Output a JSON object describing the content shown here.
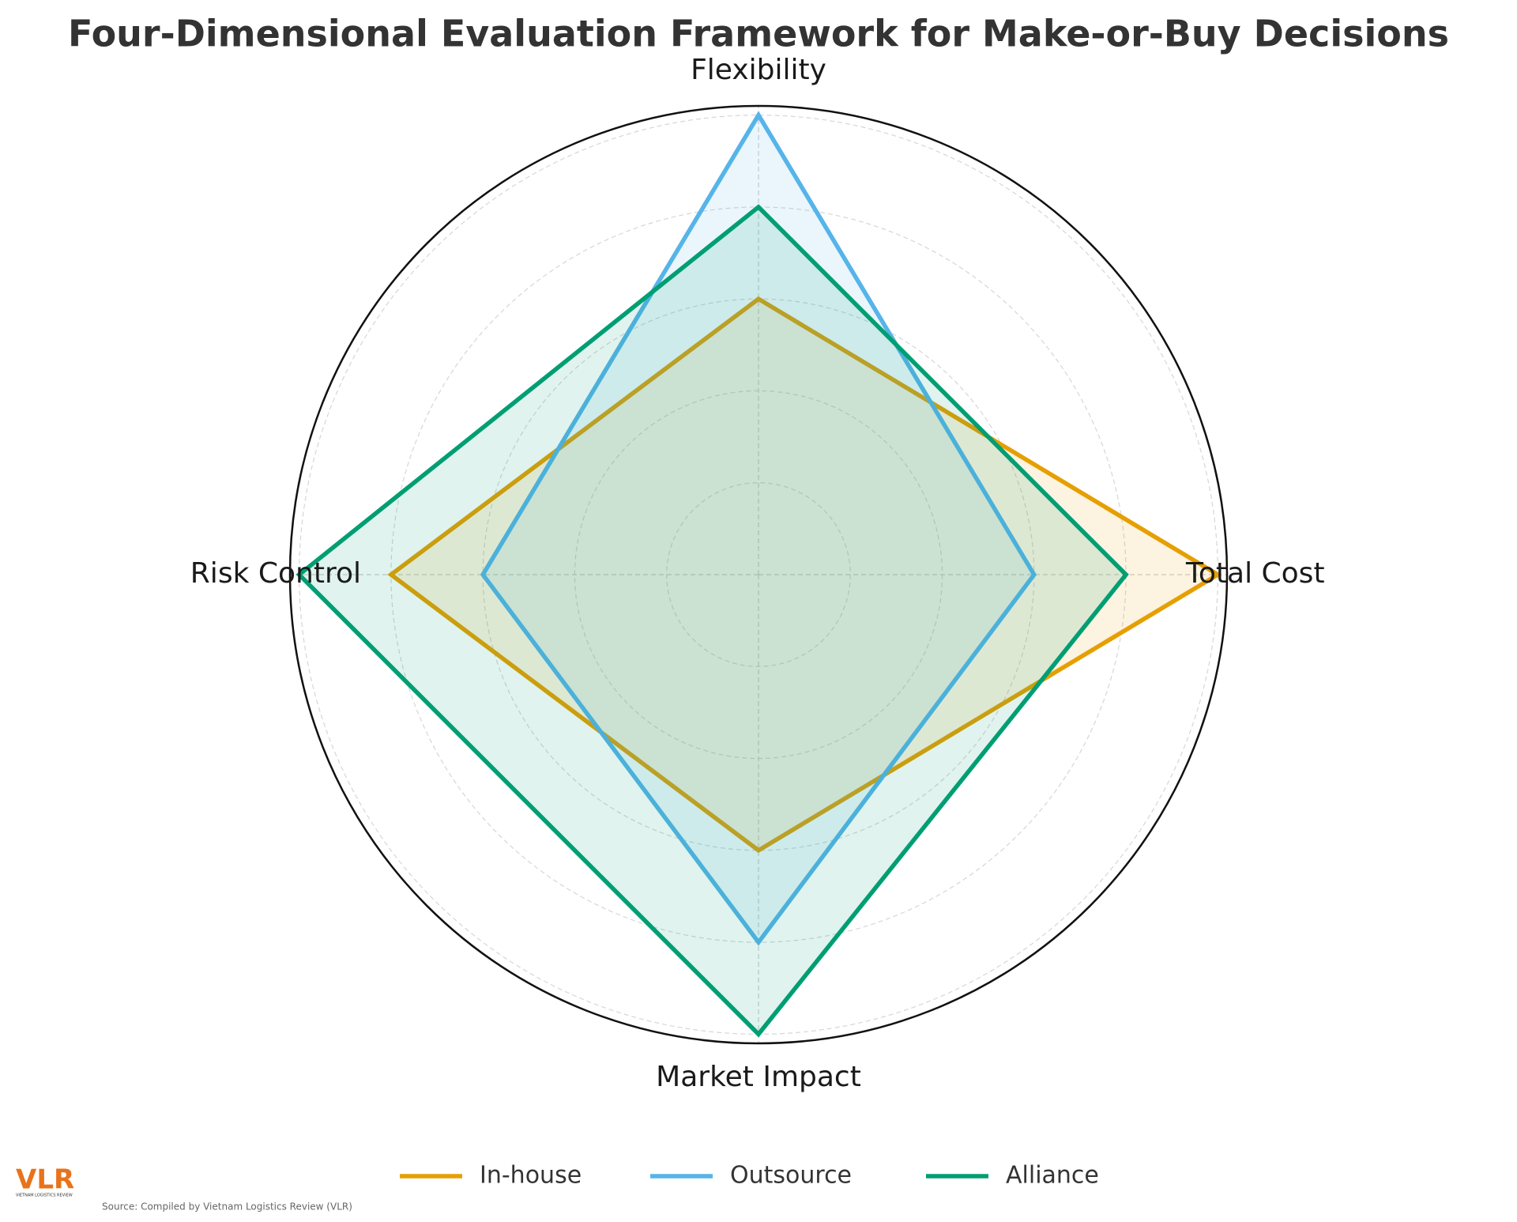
{
  "chart_data": {
    "type": "radar",
    "title": "Four-Dimensional Evaluation Framework for Make-or-Buy Decisions",
    "categories": [
      "Total Cost",
      "Flexibility",
      "Risk Control",
      "Market Impact"
    ],
    "series": [
      {
        "name": "In-house",
        "color": "#E69F00",
        "values": [
          5,
          3,
          4,
          3
        ]
      },
      {
        "name": "Outsource",
        "color": "#56B4E9",
        "values": [
          3,
          5,
          3,
          4
        ]
      },
      {
        "name": "Alliance",
        "color": "#009E73",
        "values": [
          4,
          4,
          5,
          5
        ]
      }
    ],
    "ylim": [
      0,
      5.1
    ],
    "yticks": [
      1,
      2,
      3,
      4,
      5
    ],
    "grid": true,
    "legend": "bottom"
  },
  "logo": {
    "text": "VLR",
    "subtext": "VIETNAM LOGISTICS REVIEW"
  },
  "source": "Source: Compiled by Vietnam Logistics Review (VLR)"
}
